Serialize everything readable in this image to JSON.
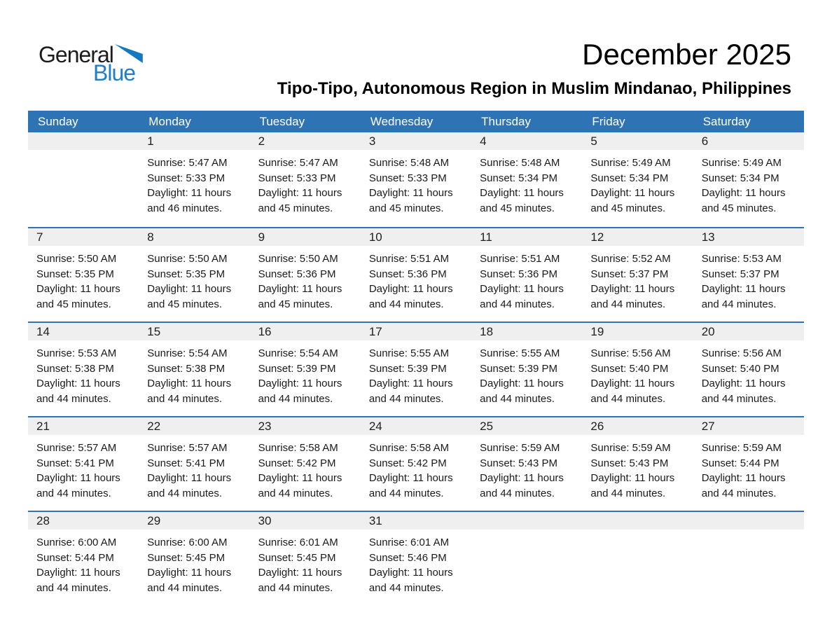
{
  "logo": {
    "text_general": "General",
    "text_blue": "Blue"
  },
  "title": "December 2025",
  "subtitle": "Tipo-Tipo, Autonomous Region in Muslim Mindanao, Philippines",
  "colors": {
    "header_blue": "#2E74B5",
    "week_divider_blue": "#2E74B5",
    "day_band_gray": "#EFEFEF",
    "logo_blue": "#1E7FC8",
    "logo_triangle_blue": "#1679BF",
    "text": "#1A1A1A"
  },
  "calendar": {
    "weekday_headers": [
      "Sunday",
      "Monday",
      "Tuesday",
      "Wednesday",
      "Thursday",
      "Friday",
      "Saturday"
    ],
    "weeks": [
      [
        null,
        {
          "day": "1",
          "lines": [
            "Sunrise: 5:47 AM",
            "Sunset: 5:33 PM",
            "Daylight: 11 hours",
            "and 46 minutes."
          ]
        },
        {
          "day": "2",
          "lines": [
            "Sunrise: 5:47 AM",
            "Sunset: 5:33 PM",
            "Daylight: 11 hours",
            "and 45 minutes."
          ]
        },
        {
          "day": "3",
          "lines": [
            "Sunrise: 5:48 AM",
            "Sunset: 5:33 PM",
            "Daylight: 11 hours",
            "and 45 minutes."
          ]
        },
        {
          "day": "4",
          "lines": [
            "Sunrise: 5:48 AM",
            "Sunset: 5:34 PM",
            "Daylight: 11 hours",
            "and 45 minutes."
          ]
        },
        {
          "day": "5",
          "lines": [
            "Sunrise: 5:49 AM",
            "Sunset: 5:34 PM",
            "Daylight: 11 hours",
            "and 45 minutes."
          ]
        },
        {
          "day": "6",
          "lines": [
            "Sunrise: 5:49 AM",
            "Sunset: 5:34 PM",
            "Daylight: 11 hours",
            "and 45 minutes."
          ]
        }
      ],
      [
        {
          "day": "7",
          "lines": [
            "Sunrise: 5:50 AM",
            "Sunset: 5:35 PM",
            "Daylight: 11 hours",
            "and 45 minutes."
          ]
        },
        {
          "day": "8",
          "lines": [
            "Sunrise: 5:50 AM",
            "Sunset: 5:35 PM",
            "Daylight: 11 hours",
            "and 45 minutes."
          ]
        },
        {
          "day": "9",
          "lines": [
            "Sunrise: 5:50 AM",
            "Sunset: 5:36 PM",
            "Daylight: 11 hours",
            "and 45 minutes."
          ]
        },
        {
          "day": "10",
          "lines": [
            "Sunrise: 5:51 AM",
            "Sunset: 5:36 PM",
            "Daylight: 11 hours",
            "and 44 minutes."
          ]
        },
        {
          "day": "11",
          "lines": [
            "Sunrise: 5:51 AM",
            "Sunset: 5:36 PM",
            "Daylight: 11 hours",
            "and 44 minutes."
          ]
        },
        {
          "day": "12",
          "lines": [
            "Sunrise: 5:52 AM",
            "Sunset: 5:37 PM",
            "Daylight: 11 hours",
            "and 44 minutes."
          ]
        },
        {
          "day": "13",
          "lines": [
            "Sunrise: 5:53 AM",
            "Sunset: 5:37 PM",
            "Daylight: 11 hours",
            "and 44 minutes."
          ]
        }
      ],
      [
        {
          "day": "14",
          "lines": [
            "Sunrise: 5:53 AM",
            "Sunset: 5:38 PM",
            "Daylight: 11 hours",
            "and 44 minutes."
          ]
        },
        {
          "day": "15",
          "lines": [
            "Sunrise: 5:54 AM",
            "Sunset: 5:38 PM",
            "Daylight: 11 hours",
            "and 44 minutes."
          ]
        },
        {
          "day": "16",
          "lines": [
            "Sunrise: 5:54 AM",
            "Sunset: 5:39 PM",
            "Daylight: 11 hours",
            "and 44 minutes."
          ]
        },
        {
          "day": "17",
          "lines": [
            "Sunrise: 5:55 AM",
            "Sunset: 5:39 PM",
            "Daylight: 11 hours",
            "and 44 minutes."
          ]
        },
        {
          "day": "18",
          "lines": [
            "Sunrise: 5:55 AM",
            "Sunset: 5:39 PM",
            "Daylight: 11 hours",
            "and 44 minutes."
          ]
        },
        {
          "day": "19",
          "lines": [
            "Sunrise: 5:56 AM",
            "Sunset: 5:40 PM",
            "Daylight: 11 hours",
            "and 44 minutes."
          ]
        },
        {
          "day": "20",
          "lines": [
            "Sunrise: 5:56 AM",
            "Sunset: 5:40 PM",
            "Daylight: 11 hours",
            "and 44 minutes."
          ]
        }
      ],
      [
        {
          "day": "21",
          "lines": [
            "Sunrise: 5:57 AM",
            "Sunset: 5:41 PM",
            "Daylight: 11 hours",
            "and 44 minutes."
          ]
        },
        {
          "day": "22",
          "lines": [
            "Sunrise: 5:57 AM",
            "Sunset: 5:41 PM",
            "Daylight: 11 hours",
            "and 44 minutes."
          ]
        },
        {
          "day": "23",
          "lines": [
            "Sunrise: 5:58 AM",
            "Sunset: 5:42 PM",
            "Daylight: 11 hours",
            "and 44 minutes."
          ]
        },
        {
          "day": "24",
          "lines": [
            "Sunrise: 5:58 AM",
            "Sunset: 5:42 PM",
            "Daylight: 11 hours",
            "and 44 minutes."
          ]
        },
        {
          "day": "25",
          "lines": [
            "Sunrise: 5:59 AM",
            "Sunset: 5:43 PM",
            "Daylight: 11 hours",
            "and 44 minutes."
          ]
        },
        {
          "day": "26",
          "lines": [
            "Sunrise: 5:59 AM",
            "Sunset: 5:43 PM",
            "Daylight: 11 hours",
            "and 44 minutes."
          ]
        },
        {
          "day": "27",
          "lines": [
            "Sunrise: 5:59 AM",
            "Sunset: 5:44 PM",
            "Daylight: 11 hours",
            "and 44 minutes."
          ]
        }
      ],
      [
        {
          "day": "28",
          "lines": [
            "Sunrise: 6:00 AM",
            "Sunset: 5:44 PM",
            "Daylight: 11 hours",
            "and 44 minutes."
          ]
        },
        {
          "day": "29",
          "lines": [
            "Sunrise: 6:00 AM",
            "Sunset: 5:45 PM",
            "Daylight: 11 hours",
            "and 44 minutes."
          ]
        },
        {
          "day": "30",
          "lines": [
            "Sunrise: 6:01 AM",
            "Sunset: 5:45 PM",
            "Daylight: 11 hours",
            "and 44 minutes."
          ]
        },
        {
          "day": "31",
          "lines": [
            "Sunrise: 6:01 AM",
            "Sunset: 5:46 PM",
            "Daylight: 11 hours",
            "and 44 minutes."
          ]
        },
        null,
        null,
        null
      ]
    ]
  }
}
